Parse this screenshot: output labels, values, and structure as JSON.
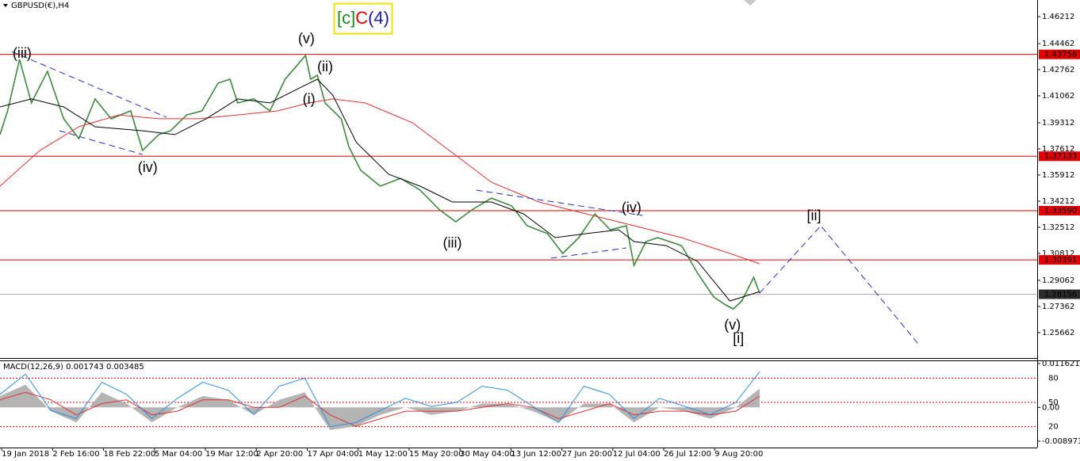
{
  "chart_data": [
    {
      "type": "line",
      "title": "GBPUSD(€),H4",
      "label_box": [
        {
          "text": "[c]",
          "color": "#1a8a1a"
        },
        {
          "text": "C",
          "color": "#e00000"
        },
        {
          "text": "(4)",
          "color": "#1a1aa0"
        }
      ],
      "xlim": [
        0,
        1222
      ],
      "xticks": [
        {
          "value": 2,
          "label": "19 Jan 2018"
        },
        {
          "value": 62,
          "label": "2 Feb 16:00"
        },
        {
          "value": 122,
          "label": "18 Feb 22:00"
        },
        {
          "value": 182,
          "label": "5 Mar 04:00"
        },
        {
          "value": 242,
          "label": "19 Mar 12:00"
        },
        {
          "value": 302,
          "label": "2 Apr 20:00"
        },
        {
          "value": 362,
          "label": "17 Apr 04:00"
        },
        {
          "value": 422,
          "label": "1 May 12:00"
        },
        {
          "value": 482,
          "label": "15 May 20:00"
        },
        {
          "value": 542,
          "label": "30 May 04:00"
        },
        {
          "value": 602,
          "label": "13 Jun 12:00"
        },
        {
          "value": 662,
          "label": "27 Jun 20:00"
        },
        {
          "value": 722,
          "label": "12 Jul 04:00"
        },
        {
          "value": 782,
          "label": "26 Jul 12:00"
        },
        {
          "value": 842,
          "label": "9 Aug 20:00"
        }
      ],
      "ylim": [
        1.24009,
        1.47294
      ],
      "yticks": [
        1.46212,
        1.44462,
        1.42762,
        1.41062,
        1.39312,
        1.37612,
        1.35912,
        1.34212,
        1.32512,
        1.30812,
        1.29062,
        1.27362,
        1.25662
      ],
      "levels": [
        1.43756,
        1.37133,
        {
          "value": 1.3359,
          "label": "1.33590"
        },
        1.30391
      ],
      "level_color": "#e00000",
      "last_price": 1.28156,
      "series": [
        {
          "color": "#3c8a3c",
          "x": [
            0,
            9,
            23,
            37,
            56,
            75,
            93,
            112,
            131,
            154,
            168,
            187,
            201,
            220,
            238,
            257,
            271,
            280,
            299,
            318,
            336,
            360,
            366,
            374,
            383,
            402,
            411,
            425,
            448,
            472,
            495,
            518,
            537,
            556,
            579,
            603,
            621,
            645,
            663,
            682,
            701,
            719,
            738,
            747,
            761,
            775,
            803,
            822,
            841,
            855,
            864,
            874,
            888,
            895
          ],
          "values": [
            1.3854,
            1.4008,
            1.4343,
            1.406,
            1.4266,
            1.3957,
            1.3828,
            1.4086,
            1.3957,
            1.4008,
            1.3751,
            1.3854,
            1.3879,
            1.3982,
            1.4008,
            1.4189,
            1.4214,
            1.406,
            1.4086,
            1.4008,
            1.4214,
            1.4369,
            1.4214,
            1.424,
            1.406,
            1.3957,
            1.3776,
            1.3622,
            1.3519,
            1.357,
            1.3493,
            1.3364,
            1.3287,
            1.3364,
            1.3441,
            1.339,
            1.3261,
            1.321,
            1.3081,
            1.3184,
            1.3338,
            1.3235,
            1.3261,
            1.3003,
            1.3158,
            1.3184,
            1.3132,
            1.2952,
            1.2797,
            1.2746,
            1.272,
            1.2772,
            1.2926,
            1.2823
          ]
        },
        {
          "color": "#e03030",
          "x": [
            0,
            47,
            93,
            140,
            187,
            234,
            280,
            327,
            364,
            392,
            430,
            486,
            542,
            579,
            635,
            691,
            747,
            803,
            860,
            895
          ],
          "values": [
            1.3519,
            1.3751,
            1.3905,
            1.3982,
            1.3957,
            1.3957,
            1.3982,
            1.4008,
            1.406,
            1.4086,
            1.406,
            1.3931,
            1.3699,
            1.3544,
            1.3416,
            1.3338,
            1.3261,
            1.3184,
            1.3081,
            1.3014
          ]
        },
        {
          "color": "#000000",
          "x": [
            0,
            37,
            75,
            112,
            168,
            206,
            243,
            280,
            318,
            355,
            374,
            392,
            420,
            458,
            495,
            533,
            579,
            617,
            654,
            691,
            729,
            747,
            785,
            822,
            860,
            895
          ],
          "values": [
            1.4034,
            1.4086,
            1.4034,
            1.3905,
            1.3879,
            1.3854,
            1.3957,
            1.4086,
            1.406,
            1.4163,
            1.4214,
            1.4111,
            1.3802,
            1.3596,
            1.3519,
            1.3416,
            1.3416,
            1.3338,
            1.3184,
            1.321,
            1.3235,
            1.3158,
            1.3132,
            1.3029,
            1.2772,
            1.2833
          ]
        }
      ],
      "trendlines": [
        {
          "color": "#2030c0",
          "x": [
            14,
            196
          ],
          "values": [
            1.4394,
            1.3967
          ]
        },
        {
          "color": "#2030c0",
          "x": [
            70,
            168
          ],
          "values": [
            1.3879,
            1.3725
          ]
        },
        {
          "color": "#2030c0",
          "x": [
            561,
            757
          ],
          "values": [
            1.3493,
            1.3328
          ]
        },
        {
          "color": "#2030c0",
          "x": [
            649,
            738
          ],
          "values": [
            1.305,
            1.3117
          ]
        },
        {
          "color": "#2030c0",
          "x": [
            895,
            967,
            1084
          ],
          "values": [
            1.2823,
            1.3261,
            1.2478
          ]
        }
      ],
      "annotations": [
        {
          "text": "(iii)",
          "x": 26,
          "y": 1.4379,
          "color": "#8b5e34"
        },
        {
          "text": "(iv)",
          "x": 174,
          "y": 1.3637,
          "color": "#8b5e34"
        },
        {
          "text": "(v)",
          "x": 361,
          "y": 1.4472,
          "color": "#8b5e34"
        },
        {
          "text": "(ii)",
          "x": 383,
          "y": 1.4291,
          "color": "#8b5e34"
        },
        {
          "text": "(i)",
          "x": 364,
          "y": 1.408,
          "color": "#8b5e34"
        },
        {
          "text": "(iii)",
          "x": 533,
          "y": 1.3143,
          "color": "#8b5e34"
        },
        {
          "text": "(iv)",
          "x": 744,
          "y": 1.3374,
          "color": "#8b5e34"
        },
        {
          "text": "(v)",
          "x": 863,
          "y": 1.2612,
          "color": "#8b5e34"
        },
        {
          "text": "[i]",
          "x": 870,
          "y": 1.2524,
          "color": "#1a8a1a"
        },
        {
          "text": "[ii]",
          "x": 959,
          "y": 1.3323,
          "color": "#1a8a1a"
        }
      ]
    },
    {
      "type": "macd",
      "title": "MACD(12,26,9) 0.001743 0.003485",
      "xlim": [
        0,
        1222
      ],
      "ylim": [
        -0.008973,
        0.011621
      ],
      "yticks": [
        0.011621,
        {
          "value": 0,
          "label": "0.00"
        },
        -0.008973
      ],
      "y2lim": [
        2,
        98
      ],
      "y2ticks": [
        80,
        50,
        20
      ],
      "y2_line_color": "#e00000",
      "series": [
        {
          "type": "area",
          "color": "#b4b4b4",
          "x": [
            0,
            30,
            60,
            90,
            120,
            149,
            179,
            209,
            239,
            269,
            299,
            329,
            359,
            389,
            419,
            448,
            478,
            508,
            538,
            568,
            598,
            628,
            658,
            688,
            718,
            747,
            777,
            807,
            837,
            867,
            895
          ],
          "values": [
            0.003,
            0.006,
            -0.001,
            -0.004,
            0.004,
            0.001,
            -0.004,
            0,
            0.003,
            0.002,
            -0.002,
            0.002,
            0.004,
            -0.006,
            -0.005,
            -0.002,
            0,
            -0.002,
            -0.001,
            0.001,
            0.001,
            -0.001,
            -0.004,
            0.001,
            0.001,
            -0.004,
            0,
            -0.001,
            -0.003,
            0,
            0.005
          ]
        },
        {
          "type": "line",
          "color": "#e03030",
          "x": [
            0,
            30,
            60,
            90,
            120,
            149,
            179,
            209,
            239,
            269,
            299,
            329,
            359,
            389,
            419,
            448,
            478,
            508,
            538,
            568,
            598,
            628,
            658,
            688,
            718,
            747,
            777,
            807,
            837,
            867,
            895
          ],
          "values": [
            0.002,
            0.004,
            0.002,
            -0.002,
            0.001,
            0.002,
            -0.002,
            -0.001,
            0.002,
            0.002,
            0,
            0,
            0.003,
            -0.002,
            -0.005,
            -0.003,
            -0.001,
            -0.001,
            -0.001,
            0,
            0.001,
            0,
            -0.003,
            -0.001,
            0.001,
            -0.002,
            -0.001,
            -0.001,
            -0.002,
            -0.001,
            0.003
          ]
        },
        {
          "type": "line",
          "axis": "y2",
          "color": "#2f8fe0",
          "x": [
            0,
            30,
            60,
            90,
            120,
            149,
            179,
            209,
            239,
            269,
            299,
            329,
            359,
            389,
            419,
            448,
            478,
            508,
            538,
            568,
            598,
            628,
            658,
            688,
            718,
            747,
            777,
            807,
            837,
            867,
            895
          ],
          "values": [
            60,
            85,
            40,
            30,
            75,
            60,
            30,
            55,
            75,
            65,
            35,
            70,
            80,
            20,
            25,
            40,
            55,
            45,
            50,
            70,
            65,
            45,
            25,
            70,
            60,
            30,
            55,
            45,
            35,
            50,
            88
          ]
        }
      ]
    }
  ]
}
